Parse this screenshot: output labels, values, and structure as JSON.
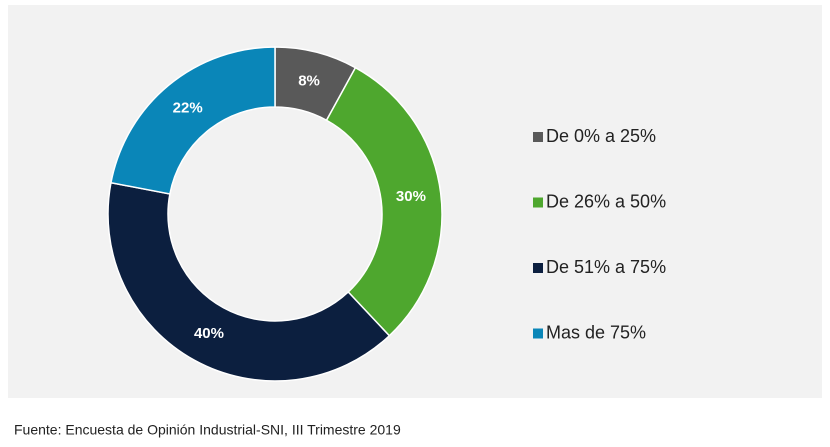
{
  "chart_data": {
    "type": "donut",
    "categories": [
      "De 0% a 25%",
      "De 26% a 50%",
      "De 51% a 75%",
      "Mas de 75%"
    ],
    "values": [
      8,
      30,
      40,
      22
    ],
    "value_labels": [
      "8%",
      "30%",
      "40%",
      "22%"
    ],
    "colors": [
      "#595959",
      "#4ea72e",
      "#0c1f3f",
      "#0a86b8"
    ],
    "legend": "right",
    "source": "Fuente: Encuesta de Opinión Industrial-SNI, III Trimestre 2019"
  }
}
